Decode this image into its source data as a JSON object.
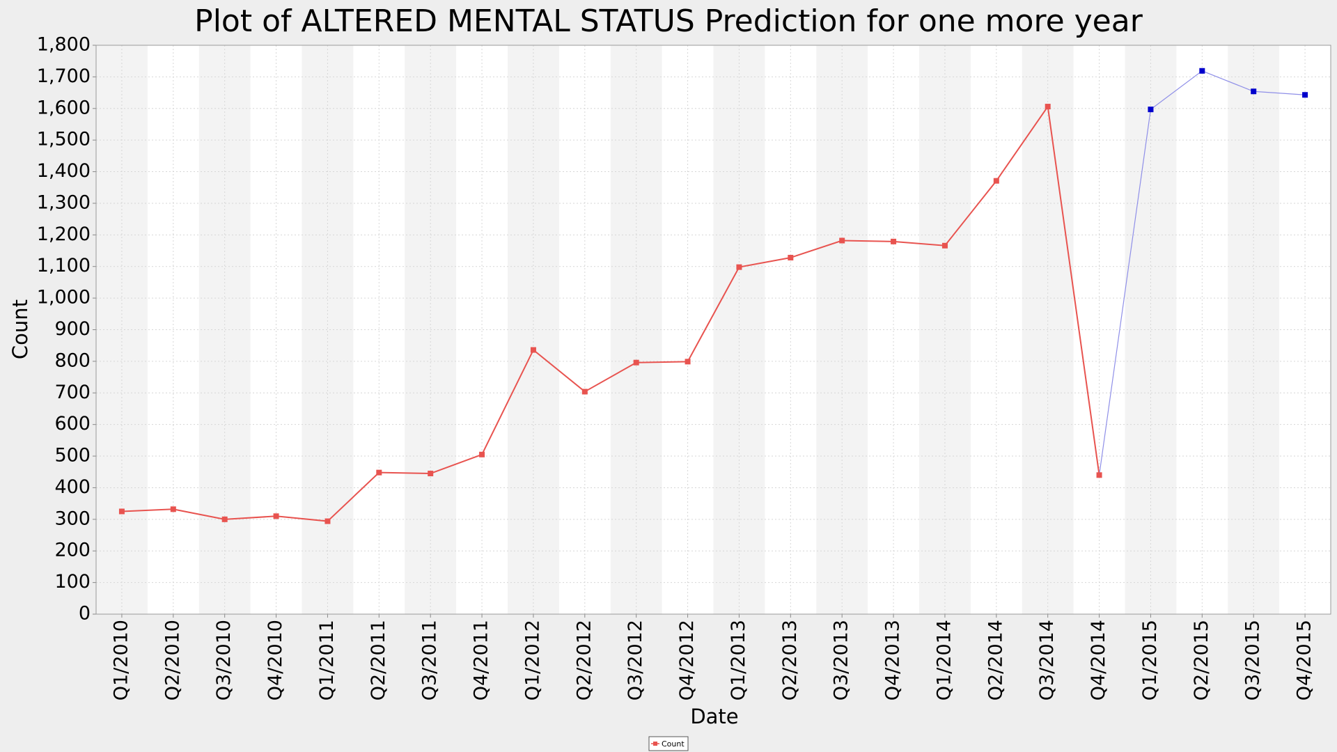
{
  "chart_data": {
    "type": "line",
    "title": "Plot of ALTERED MENTAL STATUS Prediction for one more year",
    "xlabel": "Date",
    "ylabel": "Count",
    "categories": [
      "Q1/2010",
      "Q2/2010",
      "Q3/2010",
      "Q4/2010",
      "Q1/2011",
      "Q2/2011",
      "Q3/2011",
      "Q4/2011",
      "Q1/2012",
      "Q2/2012",
      "Q3/2012",
      "Q4/2012",
      "Q1/2013",
      "Q2/2013",
      "Q3/2013",
      "Q4/2013",
      "Q1/2014",
      "Q2/2014",
      "Q3/2014",
      "Q4/2014",
      "Q1/2015",
      "Q2/2015",
      "Q3/2015",
      "Q4/2015"
    ],
    "series": [
      {
        "name": "Count",
        "color": "#e8534f",
        "values": [
          325,
          332,
          300,
          310,
          294,
          448,
          445,
          505,
          836,
          704,
          796,
          799,
          1098,
          1128,
          1182,
          1179,
          1166,
          1371,
          1606,
          440,
          null,
          null,
          null,
          null
        ]
      },
      {
        "color": "#0000cc",
        "values": [
          null,
          null,
          null,
          null,
          null,
          null,
          null,
          null,
          null,
          null,
          null,
          null,
          null,
          null,
          null,
          null,
          null,
          null,
          null,
          null,
          1597,
          1719,
          1654,
          1643
        ]
      }
    ],
    "ylim": [
      0,
      1800
    ],
    "yticks": [
      0,
      100,
      200,
      300,
      400,
      500,
      600,
      700,
      800,
      900,
      {
        "value": 1000,
        "label": "1,000"
      },
      {
        "value": 1100,
        "label": "1,100"
      },
      {
        "value": 1200,
        "label": "1,200"
      },
      {
        "value": 1300,
        "label": "1,300"
      },
      {
        "value": 1400,
        "label": "1,400"
      },
      {
        "value": 1500,
        "label": "1,500"
      },
      {
        "value": 1600,
        "label": "1,600"
      },
      {
        "value": 1700,
        "label": "1,700"
      },
      {
        "value": 1800,
        "label": "1,800"
      }
    ],
    "grid": true
  }
}
